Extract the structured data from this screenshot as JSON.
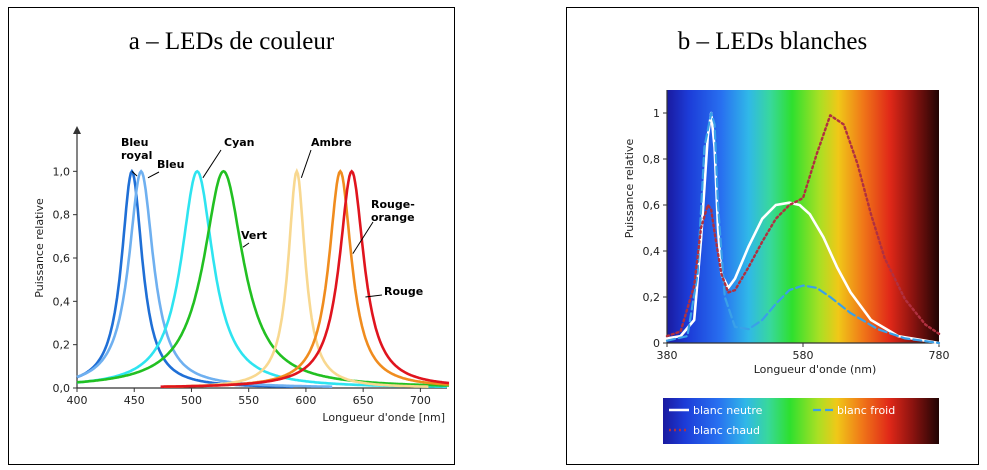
{
  "chart_data": [
    {
      "type": "line",
      "title": "a – LEDs de couleur",
      "xlabel": "Longueur d'onde [nm]",
      "ylabel": "Puissance relative",
      "xlim": [
        400,
        725
      ],
      "ylim": [
        0,
        1.2
      ],
      "xticks": [
        400,
        450,
        500,
        550,
        600,
        650,
        700
      ],
      "xtick_labels": [
        "400",
        "450",
        "500",
        "550",
        "600",
        "650",
        "700"
      ],
      "yticks": [
        0,
        0.2,
        0.4,
        0.6,
        0.8,
        1.0
      ],
      "ytick_labels": [
        "0,0",
        "0,2",
        "0,4",
        "0,6",
        "0,8",
        "1,0"
      ],
      "grid": false,
      "series": [
        {
          "label": "Bleu royal",
          "color": "#1f6fd6",
          "peak": 448,
          "width": 11,
          "amplitude": 1.0
        },
        {
          "label": "Bleu",
          "color": "#6fb0f0",
          "peak": 456,
          "width": 13,
          "amplitude": 1.0
        },
        {
          "label": "Cyan",
          "color": "#2ee4f0",
          "peak": 505,
          "width": 17,
          "amplitude": 1.0
        },
        {
          "label": "Vert",
          "color": "#22c022",
          "peak": 528,
          "width": 21,
          "amplitude": 1.0
        },
        {
          "label": "Ambre",
          "color": "#f8d890",
          "peak": 592,
          "width": 9,
          "amplitude": 1.0
        },
        {
          "label": "Rouge-orange",
          "color": "#f08c1e",
          "peak": 630,
          "width": 12,
          "amplitude": 1.0
        },
        {
          "label": "Rouge",
          "color": "#e0141e",
          "peak": 640,
          "width": 13,
          "amplitude": 1.0
        }
      ],
      "annotations": [
        {
          "text": "Bleu",
          "line2": "royal",
          "target_series": "Bleu royal"
        },
        {
          "text": "Bleu",
          "target_series": "Bleu"
        },
        {
          "text": "Cyan",
          "target_series": "Cyan"
        },
        {
          "text": "Vert",
          "target_series": "Vert"
        },
        {
          "text": "Ambre",
          "target_series": "Ambre"
        },
        {
          "text": "Rouge-",
          "line2": "orange",
          "target_series": "Rouge-orange"
        },
        {
          "text": "Rouge",
          "target_series": "Rouge"
        }
      ]
    },
    {
      "type": "line",
      "title": "b – LEDs blanches",
      "xlabel": "Longueur d'onde (nm)",
      "ylabel": "Puissance relative",
      "xlim": [
        380,
        780
      ],
      "ylim": [
        0,
        1.1
      ],
      "xticks": [
        380,
        580,
        780
      ],
      "xtick_labels": [
        "380",
        "580",
        "780"
      ],
      "yticks": [
        0,
        0.2,
        0.4,
        0.6,
        0.8,
        1
      ],
      "ytick_labels": [
        "0",
        "0,2",
        "0,4",
        "0,6",
        "0,8",
        "1"
      ],
      "grid": false,
      "background": "visible spectrum gradient",
      "legend_position": "bottom",
      "series": [
        {
          "name": "blanc neutre",
          "color": "#ffffff",
          "style": "solid",
          "x": [
            380,
            400,
            420,
            430,
            440,
            445,
            450,
            455,
            460,
            470,
            480,
            500,
            520,
            540,
            560,
            575,
            590,
            610,
            630,
            650,
            680,
            720,
            760,
            780
          ],
          "y": [
            0.02,
            0.03,
            0.1,
            0.45,
            0.9,
            1.0,
            0.85,
            0.5,
            0.3,
            0.24,
            0.28,
            0.42,
            0.54,
            0.6,
            0.61,
            0.6,
            0.56,
            0.46,
            0.33,
            0.22,
            0.1,
            0.03,
            0.01,
            0.0
          ]
        },
        {
          "name": "blanc froid",
          "color": "#3aa0e8",
          "style": "dashed",
          "x": [
            380,
            410,
            425,
            435,
            445,
            450,
            455,
            465,
            480,
            500,
            520,
            540,
            560,
            580,
            600,
            620,
            650,
            690,
            730,
            780
          ],
          "y": [
            0.01,
            0.03,
            0.3,
            0.85,
            1.0,
            0.95,
            0.6,
            0.2,
            0.07,
            0.06,
            0.1,
            0.17,
            0.23,
            0.25,
            0.24,
            0.2,
            0.13,
            0.06,
            0.02,
            0.0
          ]
        },
        {
          "name": "blanc chaud",
          "color": "#b03040",
          "style": "dotted",
          "x": [
            380,
            400,
            420,
            430,
            440,
            445,
            450,
            460,
            470,
            480,
            500,
            520,
            540,
            560,
            580,
            600,
            620,
            640,
            660,
            680,
            700,
            730,
            760,
            780
          ],
          "y": [
            0.03,
            0.05,
            0.25,
            0.5,
            0.6,
            0.58,
            0.48,
            0.3,
            0.22,
            0.23,
            0.33,
            0.44,
            0.54,
            0.6,
            0.63,
            0.82,
            0.99,
            0.95,
            0.78,
            0.56,
            0.37,
            0.19,
            0.08,
            0.04
          ]
        }
      ]
    }
  ]
}
